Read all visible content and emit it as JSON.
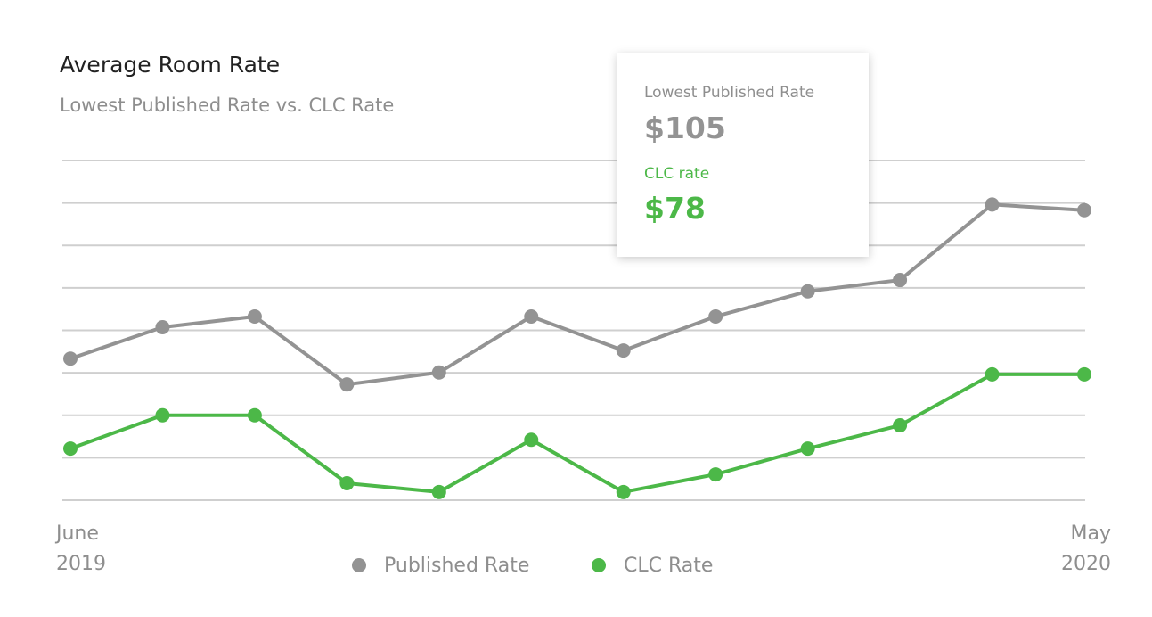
{
  "chart_data": {
    "type": "line",
    "title": "Average Room Rate",
    "subtitle": "Lowest Published Rate vs. CLC Rate",
    "categories": [
      "June 2019",
      null,
      null,
      null,
      null,
      null,
      null,
      null,
      null,
      null,
      null,
      "May 2020"
    ],
    "series": [
      {
        "name": "Published Rate",
        "color": "#939393",
        "values": [
          80.5,
          85.5,
          87.2,
          76.4,
          78.3,
          87.2,
          81.8,
          87.2,
          91.2,
          93,
          105,
          104.1
        ]
      },
      {
        "name": "CLC Rate",
        "color": "#4cb848",
        "values": [
          66.2,
          71.5,
          71.5,
          60.7,
          59.3,
          67.6,
          59.3,
          62.1,
          66.2,
          69.9,
          78,
          78
        ]
      }
    ],
    "ylim": [
      58,
      112
    ],
    "yticks": [
      58,
      64.75,
      71.5,
      78.25,
      85,
      91.75,
      98.5,
      105.25,
      112
    ],
    "grid": true,
    "tooltip": {
      "published_label": "Lowest Published Rate",
      "published_value": "$105",
      "clc_label": "CLC rate",
      "clc_value": "$78"
    }
  }
}
